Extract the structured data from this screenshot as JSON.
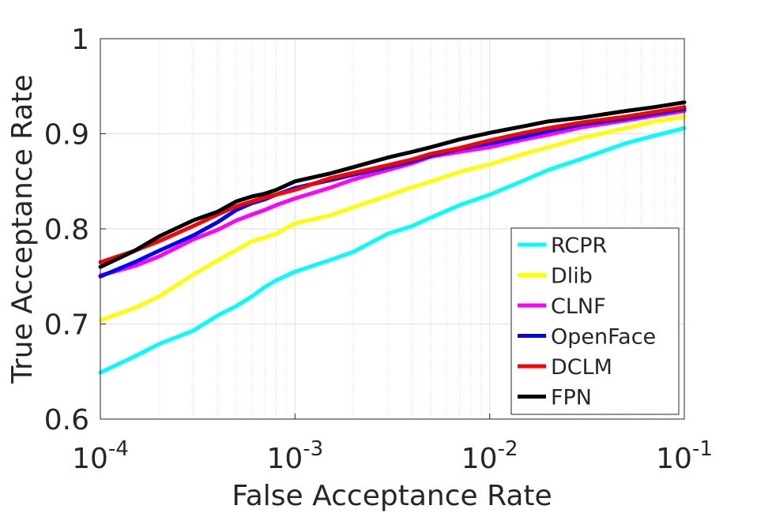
{
  "chart_data": {
    "type": "line",
    "title": "",
    "xlabel": "False Acceptance Rate",
    "ylabel": "True Acceptance Rate",
    "xscale": "log",
    "xlim": [
      0.0001,
      0.1
    ],
    "ylim": [
      0.6,
      1.0
    ],
    "x_ticks": [
      0.0001,
      0.001,
      0.01,
      0.1
    ],
    "x_tick_labels": [
      {
        "base": "10",
        "exp": "-4"
      },
      {
        "base": "10",
        "exp": "-3"
      },
      {
        "base": "10",
        "exp": "-2"
      },
      {
        "base": "10",
        "exp": "-1"
      }
    ],
    "y_ticks": [
      0.6,
      0.7,
      0.8,
      0.9,
      1.0
    ],
    "y_tick_labels": [
      "0.6",
      "0.7",
      "0.8",
      "0.9",
      "1"
    ],
    "grid": true,
    "minor_grid_x": true,
    "legend_position": "bottom-right",
    "series": [
      {
        "name": "RCPR",
        "color": "#00ffff",
        "x": [
          0.0001,
          0.00015,
          0.0002,
          0.0003,
          0.0004,
          0.0005,
          0.0006,
          0.0007,
          0.0008,
          0.001,
          0.0015,
          0.002,
          0.003,
          0.004,
          0.005,
          0.007,
          0.01,
          0.015,
          0.02,
          0.03,
          0.05,
          0.07,
          0.1
        ],
        "y": [
          0.649,
          0.666,
          0.679,
          0.693,
          0.709,
          0.719,
          0.729,
          0.739,
          0.746,
          0.755,
          0.767,
          0.776,
          0.795,
          0.803,
          0.812,
          0.825,
          0.836,
          0.851,
          0.862,
          0.874,
          0.89,
          0.898,
          0.906
        ]
      },
      {
        "name": "Dlib",
        "color": "#ffff00",
        "x": [
          0.0001,
          0.00015,
          0.0002,
          0.0003,
          0.0004,
          0.0005,
          0.0006,
          0.0007,
          0.0008,
          0.001,
          0.0015,
          0.002,
          0.003,
          0.004,
          0.005,
          0.007,
          0.01,
          0.015,
          0.02,
          0.03,
          0.05,
          0.07,
          0.1
        ],
        "y": [
          0.704,
          0.717,
          0.729,
          0.752,
          0.767,
          0.778,
          0.787,
          0.791,
          0.795,
          0.806,
          0.814,
          0.823,
          0.835,
          0.844,
          0.85,
          0.86,
          0.868,
          0.879,
          0.886,
          0.896,
          0.906,
          0.913,
          0.918
        ]
      },
      {
        "name": "CLNF",
        "color": "#ff00ff",
        "x": [
          0.0001,
          0.00015,
          0.0002,
          0.0003,
          0.0004,
          0.0005,
          0.0006,
          0.0007,
          0.0008,
          0.001,
          0.0015,
          0.002,
          0.003,
          0.004,
          0.005,
          0.007,
          0.01,
          0.015,
          0.02,
          0.03,
          0.05,
          0.07,
          0.1
        ],
        "y": [
          0.751,
          0.761,
          0.771,
          0.789,
          0.799,
          0.809,
          0.815,
          0.82,
          0.825,
          0.832,
          0.843,
          0.852,
          0.862,
          0.869,
          0.876,
          0.881,
          0.886,
          0.894,
          0.899,
          0.907,
          0.914,
          0.919,
          0.924
        ]
      },
      {
        "name": "OpenFace",
        "color": "#0000ff",
        "x": [
          0.0001,
          0.00015,
          0.0002,
          0.0003,
          0.0004,
          0.0005,
          0.0006,
          0.0007,
          0.0008,
          0.001,
          0.0015,
          0.002,
          0.003,
          0.004,
          0.005,
          0.007,
          0.01,
          0.015,
          0.02,
          0.03,
          0.05,
          0.07,
          0.1
        ],
        "y": [
          0.75,
          0.765,
          0.777,
          0.793,
          0.807,
          0.82,
          0.827,
          0.831,
          0.836,
          0.843,
          0.851,
          0.857,
          0.865,
          0.871,
          0.877,
          0.884,
          0.89,
          0.897,
          0.903,
          0.91,
          0.916,
          0.921,
          0.926
        ]
      },
      {
        "name": "DCLM",
        "color": "#ff0000",
        "x": [
          0.0001,
          0.00015,
          0.0002,
          0.0003,
          0.0004,
          0.0005,
          0.0006,
          0.0007,
          0.0008,
          0.001,
          0.0015,
          0.002,
          0.003,
          0.004,
          0.005,
          0.007,
          0.01,
          0.015,
          0.02,
          0.03,
          0.05,
          0.07,
          0.1
        ],
        "y": [
          0.765,
          0.777,
          0.787,
          0.803,
          0.815,
          0.824,
          0.829,
          0.833,
          0.836,
          0.841,
          0.853,
          0.859,
          0.867,
          0.873,
          0.879,
          0.885,
          0.893,
          0.901,
          0.906,
          0.912,
          0.918,
          0.923,
          0.928
        ]
      },
      {
        "name": "FPN",
        "color": "#000000",
        "x": [
          0.0001,
          0.00015,
          0.0002,
          0.0003,
          0.0004,
          0.0005,
          0.0006,
          0.0007,
          0.0008,
          0.001,
          0.0015,
          0.002,
          0.003,
          0.004,
          0.005,
          0.007,
          0.01,
          0.015,
          0.02,
          0.03,
          0.05,
          0.07,
          0.1
        ],
        "y": [
          0.76,
          0.777,
          0.792,
          0.809,
          0.818,
          0.829,
          0.834,
          0.837,
          0.841,
          0.85,
          0.858,
          0.865,
          0.875,
          0.881,
          0.886,
          0.894,
          0.901,
          0.908,
          0.913,
          0.917,
          0.924,
          0.928,
          0.933
        ]
      }
    ]
  }
}
